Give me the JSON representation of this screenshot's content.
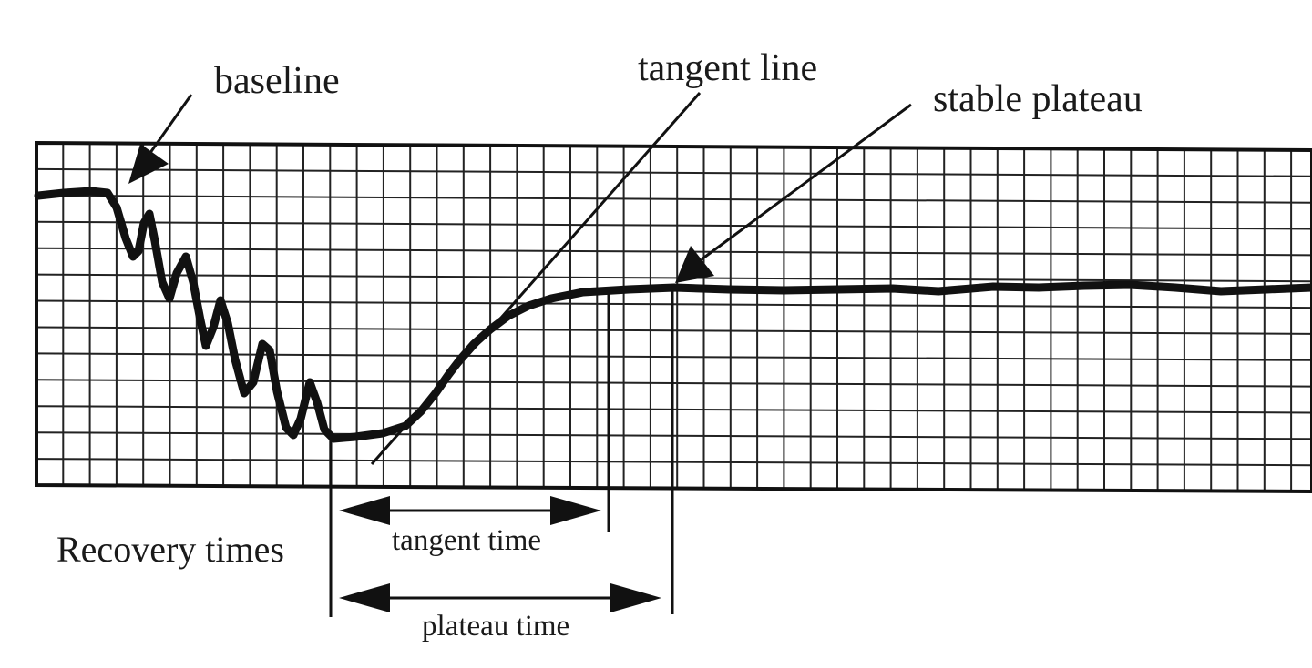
{
  "labels": {
    "baseline": "baseline",
    "tangent_line": "tangent line",
    "stable_plateau": "stable plateau",
    "recovery_times": "Recovery times",
    "tangent_time": "tangent time",
    "plateau_time": "plateau time"
  },
  "colors": {
    "ink": "#111111",
    "paper": "#ffffff"
  }
}
